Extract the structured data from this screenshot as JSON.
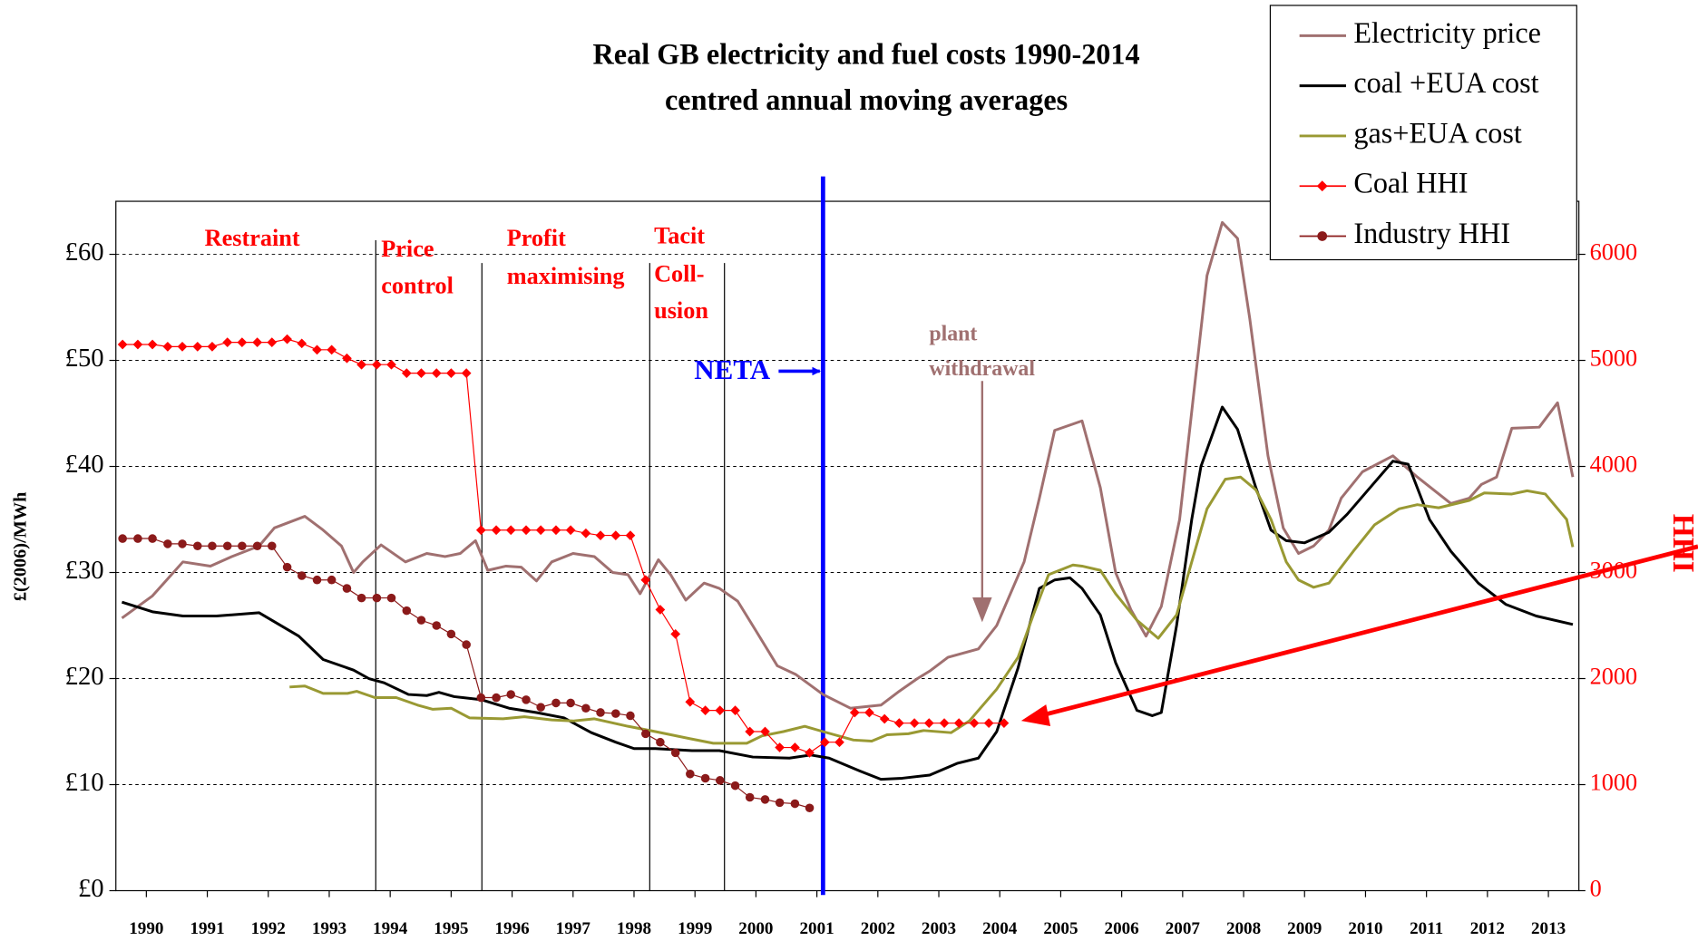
{
  "chart_data": {
    "type": "line",
    "title": "Real GB electricity and fuel costs 1990-2014",
    "subtitle": "centred annual moving averages",
    "y_label": "£(2006)/MWh",
    "y2_label": "HHI",
    "xlim": [
      1990,
      2014
    ],
    "xticks": [
      {
        "value": 1990.5,
        "label": "1990"
      },
      {
        "value": 1991.5,
        "label": "1991"
      },
      {
        "value": 1992.5,
        "label": "1992"
      },
      {
        "value": 1993.5,
        "label": "1993"
      },
      {
        "value": 1994.5,
        "label": "1994"
      },
      {
        "value": 1995.5,
        "label": "1995"
      },
      {
        "value": 1996.5,
        "label": "1996"
      },
      {
        "value": 1997.5,
        "label": "1997"
      },
      {
        "value": 1998.5,
        "label": "1998"
      },
      {
        "value": 1999.5,
        "label": "1999"
      },
      {
        "value": 2000.5,
        "label": "2000"
      },
      {
        "value": 2001.5,
        "label": "2001"
      },
      {
        "value": 2002.5,
        "label": "2002"
      },
      {
        "value": 2003.5,
        "label": "2003"
      },
      {
        "value": 2004.5,
        "label": "2004"
      },
      {
        "value": 2005.5,
        "label": "2005"
      },
      {
        "value": 2006.5,
        "label": "2006"
      },
      {
        "value": 2007.5,
        "label": "2007"
      },
      {
        "value": 2008.5,
        "label": "2008"
      },
      {
        "value": 2009.5,
        "label": "2009"
      },
      {
        "value": 2010.5,
        "label": "2010"
      },
      {
        "value": 2011.5,
        "label": "2011"
      },
      {
        "value": 2012.5,
        "label": "2012"
      },
      {
        "value": 2013.5,
        "label": "2013"
      }
    ],
    "ylim": [
      0,
      65
    ],
    "yticks": [
      {
        "value": 0,
        "label": "£0"
      },
      {
        "value": 10,
        "label": "£10"
      },
      {
        "value": 20,
        "label": "£20"
      },
      {
        "value": 30,
        "label": "£30"
      },
      {
        "value": 40,
        "label": "£40"
      },
      {
        "value": 50,
        "label": "£50"
      },
      {
        "value": 60,
        "label": "£60"
      }
    ],
    "y2lim": [
      0,
      6500
    ],
    "y2ticks": [
      0,
      1000,
      2000,
      3000,
      4000,
      5000,
      6000
    ],
    "grid": true,
    "legend": "top-right",
    "series": [
      {
        "name": "Electricity price",
        "color": "#a07070",
        "marker": "none",
        "x": [
          1990.1,
          1990.6,
          1991.1,
          1991.55,
          1991.9,
          1992.35,
          1992.6,
          1993.1,
          1993.4,
          1993.7,
          1993.9,
          1994.05,
          1994.35,
          1994.75,
          1995.1,
          1995.4,
          1995.65,
          1995.9,
          1996.1,
          1996.4,
          1996.65,
          1996.9,
          1997.15,
          1997.5,
          1997.85,
          1998.15,
          1998.4,
          1998.6,
          1998.9,
          1999.1,
          1999.35,
          1999.65,
          1999.9,
          2000.2,
          2000.5,
          2000.85,
          2001.15,
          2001.6,
          2002.05,
          2002.55,
          2002.85,
          2003.15,
          2003.35,
          2003.65,
          2004.15,
          2004.45,
          2004.9,
          2005.15,
          2005.4,
          2005.85,
          2006.15,
          2006.4,
          2006.65,
          2006.9,
          2007.15,
          2007.45,
          2007.9,
          2008.15,
          2008.4,
          2008.6,
          2008.9,
          2009.15,
          2009.4,
          2009.65,
          2009.9,
          2010.1,
          2010.45,
          2010.95,
          2011.35,
          2011.9,
          2012.2,
          2012.4,
          2012.65,
          2012.9,
          2013.35,
          2013.65,
          2013.9
        ],
        "values": [
          25.7,
          27.8,
          31,
          30.6,
          31.5,
          32.5,
          34.2,
          35.3,
          34,
          32.5,
          30,
          31,
          32.6,
          31,
          31.8,
          31.5,
          31.8,
          33,
          30.2,
          30.6,
          30.5,
          29.2,
          31,
          31.8,
          31.5,
          30,
          29.8,
          28,
          31.2,
          29.8,
          27.4,
          29,
          28.5,
          27.3,
          24.5,
          21.2,
          20.4,
          18.5,
          17.2,
          17.5,
          18.8,
          20,
          20.7,
          22,
          22.8,
          25,
          31,
          37,
          43.4,
          44.3,
          38,
          30,
          26.5,
          24,
          26.8,
          35,
          58,
          63,
          61.5,
          54,
          41,
          34.2,
          31.8,
          32.5,
          34,
          37,
          39.5,
          41,
          39,
          36.5,
          37,
          38.3,
          39,
          43.6,
          43.7,
          46,
          39
        ]
      },
      {
        "name": "coal +EUA cost",
        "color": "#000000",
        "marker": "none",
        "x": [
          1990.1,
          1990.6,
          1991.1,
          1991.65,
          1992.35,
          1993.0,
          1993.4,
          1993.9,
          1994.15,
          1994.4,
          1994.8,
          1995.1,
          1995.3,
          1995.55,
          1996.0,
          1996.45,
          1996.9,
          1997.35,
          1997.8,
          1998.2,
          1998.5,
          1998.85,
          1999.45,
          1999.9,
          2000.45,
          2001.05,
          2001.4,
          2001.7,
          2002.2,
          2002.55,
          2002.9,
          2003.35,
          2003.8,
          2004.15,
          2004.45,
          2004.8,
          2005.15,
          2005.4,
          2005.65,
          2005.85,
          2006.15,
          2006.4,
          2006.75,
          2007.0,
          2007.15,
          2007.4,
          2007.65,
          2007.8,
          2008.15,
          2008.4,
          2008.7,
          2008.95,
          2009.2,
          2009.5,
          2009.9,
          2010.2,
          2010.65,
          2010.95,
          2011.2,
          2011.55,
          2011.9,
          2012.35,
          2012.8,
          2013.3,
          2013.9
        ],
        "values": [
          27.2,
          26.3,
          25.9,
          25.9,
          26.2,
          24,
          21.8,
          20.8,
          20,
          19.6,
          18.5,
          18.4,
          18.7,
          18.3,
          18,
          17.2,
          16.8,
          16.3,
          14.9,
          14,
          13.4,
          13.4,
          13.2,
          13.2,
          12.6,
          12.5,
          12.8,
          12.5,
          11.3,
          10.5,
          10.6,
          10.9,
          12,
          12.5,
          15,
          21,
          28.5,
          29.3,
          29.5,
          28.5,
          26,
          21.5,
          17,
          16.5,
          16.8,
          25,
          35,
          40,
          45.6,
          43.5,
          38,
          34,
          33,
          32.8,
          33.8,
          35.5,
          38.5,
          40.5,
          40.2,
          35,
          32,
          29,
          27,
          25.9,
          25.1
        ]
      },
      {
        "name": "gas+EUA cost",
        "color": "#999933",
        "marker": "none",
        "x": [
          1992.85,
          1993.1,
          1993.4,
          1993.8,
          1993.95,
          1994.25,
          1994.6,
          1994.95,
          1995.2,
          1995.5,
          1995.8,
          1996.35,
          1996.7,
          1997.15,
          1997.5,
          1997.85,
          1998.4,
          1998.85,
          1999.45,
          1999.8,
          2000.35,
          2000.6,
          2000.95,
          2001.3,
          2001.6,
          2002.1,
          2002.4,
          2002.65,
          2003.0,
          2003.25,
          2003.7,
          2004.0,
          2004.45,
          2004.8,
          2005.05,
          2005.3,
          2005.7,
          2005.85,
          2006.15,
          2006.4,
          2006.75,
          2007.1,
          2007.4,
          2007.65,
          2007.9,
          2008.2,
          2008.45,
          2008.7,
          2008.95,
          2009.2,
          2009.4,
          2009.65,
          2009.9,
          2010.3,
          2010.65,
          2011.05,
          2011.35,
          2011.7,
          2012.2,
          2012.45,
          2012.9,
          2013.15,
          2013.45,
          2013.8,
          2013.9
        ],
        "values": [
          19.2,
          19.3,
          18.6,
          18.6,
          18.8,
          18.2,
          18.2,
          17.5,
          17.1,
          17.2,
          16.3,
          16.2,
          16.4,
          16.1,
          16,
          16.2,
          15.5,
          15,
          14.3,
          13.9,
          13.9,
          14.6,
          15,
          15.5,
          15,
          14.2,
          14.1,
          14.7,
          14.8,
          15.1,
          14.9,
          16,
          19,
          22,
          26,
          29.8,
          30.7,
          30.6,
          30.2,
          28,
          25.5,
          23.8,
          26,
          31,
          36,
          38.8,
          39,
          37.8,
          35,
          31,
          29.3,
          28.6,
          29,
          32,
          34.5,
          36,
          36.4,
          36.1,
          36.8,
          37.5,
          37.4,
          37.7,
          37.4,
          35,
          32.4
        ]
      },
      {
        "name": "Coal HHI",
        "color": "#ff0000",
        "marker": "diamond",
        "axis": "y2",
        "x": [
          1990.11,
          1990.36,
          1990.6,
          1990.85,
          1991.09,
          1991.34,
          1991.58,
          1991.83,
          1992.07,
          1992.32,
          1992.56,
          1992.81,
          1993.05,
          1993.3,
          1993.54,
          1993.79,
          1994.03,
          1994.28,
          1994.52,
          1994.77,
          1995.01,
          1995.26,
          1995.5,
          1995.75,
          1995.99,
          1996.24,
          1996.48,
          1996.73,
          1996.97,
          1997.22,
          1997.46,
          1997.71,
          1997.95,
          1998.2,
          1998.44,
          1998.69,
          1998.93,
          1999.18,
          1999.42,
          1999.67,
          1999.91,
          2000.16,
          2000.4,
          2000.65,
          2000.89,
          2001.14,
          2001.38,
          2001.63,
          2001.87,
          2002.12,
          2002.36,
          2002.61,
          2002.85,
          2003.1,
          2003.34,
          2003.59,
          2003.83,
          2004.08,
          2004.32,
          2004.57
        ],
        "values": [
          5150,
          5150,
          5150,
          5130,
          5130,
          5130,
          5130,
          5170,
          5170,
          5170,
          5170,
          5200,
          5160,
          5100,
          5100,
          5020,
          4960,
          4960,
          4960,
          4880,
          4880,
          4880,
          4880,
          4880,
          3400,
          3400,
          3400,
          3400,
          3400,
          3400,
          3400,
          3370,
          3350,
          3350,
          3350,
          2930,
          2650,
          2420,
          1780,
          1700,
          1700,
          1700,
          1500,
          1500,
          1350,
          1350,
          1300,
          1400,
          1400,
          1680,
          1680,
          1620,
          1580,
          1580,
          1580,
          1580,
          1580,
          1580,
          1580,
          1580
        ]
      },
      {
        "name": "Industry HHI",
        "color": "#8b1a1a",
        "marker": "circle",
        "axis": "y2",
        "x": [
          1990.11,
          1990.36,
          1990.6,
          1990.85,
          1991.09,
          1991.34,
          1991.58,
          1991.83,
          1992.07,
          1992.32,
          1992.56,
          1992.81,
          1993.05,
          1993.3,
          1993.54,
          1993.79,
          1994.03,
          1994.28,
          1994.52,
          1994.77,
          1995.01,
          1995.26,
          1995.5,
          1995.75,
          1995.99,
          1996.24,
          1996.48,
          1996.73,
          1996.97,
          1997.22,
          1997.46,
          1997.71,
          1997.95,
          1998.2,
          1998.44,
          1998.69,
          1998.93,
          1999.18,
          1999.42,
          1999.67,
          1999.91,
          2000.16,
          2000.4,
          2000.65,
          2000.89,
          2001.14,
          2001.38
        ],
        "values": [
          3320,
          3320,
          3320,
          3270,
          3270,
          3250,
          3250,
          3250,
          3250,
          3250,
          3250,
          3050,
          2970,
          2930,
          2930,
          2850,
          2760,
          2760,
          2760,
          2640,
          2550,
          2500,
          2420,
          2320,
          1820,
          1820,
          1850,
          1800,
          1730,
          1770,
          1770,
          1720,
          1680,
          1670,
          1650,
          1480,
          1400,
          1300,
          1100,
          1060,
          1040,
          990,
          880,
          860,
          830,
          820,
          780
        ]
      }
    ],
    "annotations": [
      {
        "lines": [
          "Restraint"
        ],
        "color": "#ff0000"
      },
      {
        "lines": [
          "Price",
          "control"
        ],
        "color": "#ff0000"
      },
      {
        "lines": [
          "Profit",
          "maximising"
        ],
        "color": "#ff0000"
      },
      {
        "lines": [
          "Tacit",
          "Coll-",
          "usion"
        ],
        "color": "#ff0000"
      },
      {
        "lines": [
          "NETA"
        ],
        "color": "#0000ff"
      },
      {
        "lines": [
          "plant",
          "withdrawal"
        ],
        "color": "#a07070"
      }
    ]
  }
}
